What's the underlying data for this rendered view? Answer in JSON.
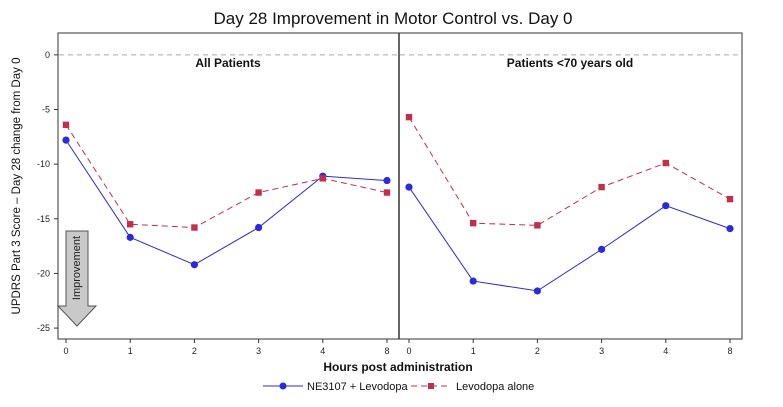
{
  "chart_data": {
    "type": "line",
    "title": "Day 28 Improvement in Motor Control vs. Day 0",
    "xlabel": "Hours post administration",
    "ylabel": "UPDRS Part 3 Score – Day 28 change from Day 0",
    "ylim": [
      -26,
      2
    ],
    "yticks": [
      0,
      -5,
      -10,
      -15,
      -20,
      -25
    ],
    "categories": [
      "0",
      "1",
      "2",
      "3",
      "4",
      "8"
    ],
    "grid": false,
    "legend_position": "bottom",
    "reference_line": 0,
    "arrow_label": "Improvement",
    "panels": [
      {
        "title": "All Patients",
        "series": [
          {
            "name": "NE3107 + Levodopa",
            "values": [
              -7.8,
              -16.7,
              -19.2,
              -15.8,
              -11.1,
              -11.5
            ]
          },
          {
            "name": "Levodopa alone",
            "values": [
              -6.4,
              -15.5,
              -15.8,
              -12.6,
              -11.3,
              -12.6
            ]
          }
        ]
      },
      {
        "title": "Patients <70 years old",
        "series": [
          {
            "name": "NE3107 + Levodopa",
            "values": [
              -12.1,
              -20.7,
              -21.6,
              -17.8,
              -13.8,
              -15.9
            ]
          },
          {
            "name": "Levodopa alone",
            "values": [
              -5.7,
              -15.4,
              -15.6,
              -12.1,
              -9.9,
              -13.2
            ]
          }
        ]
      }
    ],
    "series_styles": [
      {
        "color": "#2b2bd8",
        "marker": "circle",
        "dash": ""
      },
      {
        "color": "#c0304a",
        "marker": "square",
        "dash": "6,4"
      }
    ]
  }
}
